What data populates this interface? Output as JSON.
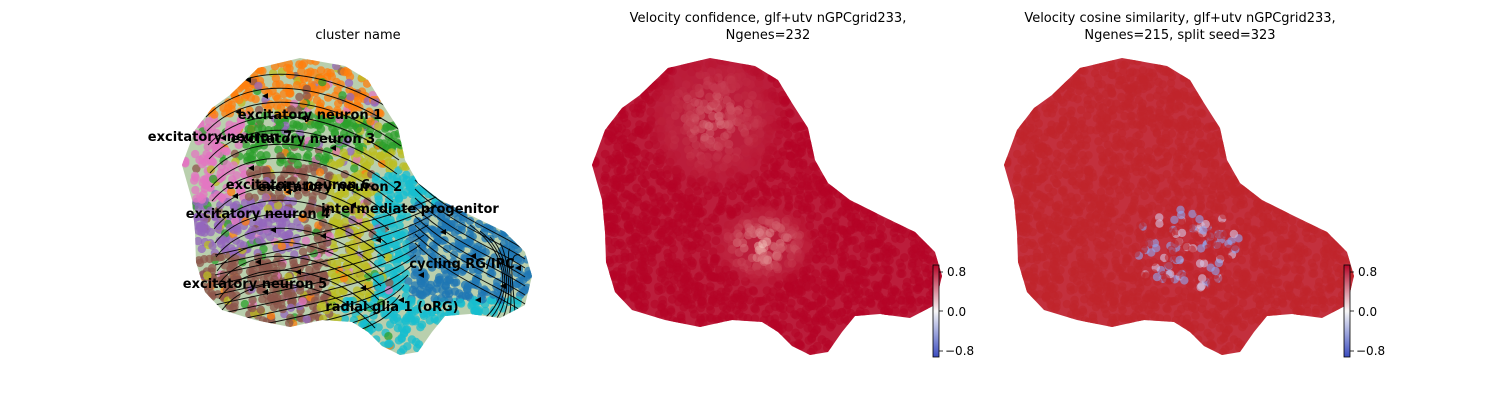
{
  "chart_data": [
    {
      "type": "scatter",
      "title": "cluster name",
      "xlabel": "",
      "ylabel": "",
      "overlay": "velocity-streamlines",
      "legend": "on-data",
      "series": [
        {
          "name": "excitatory neuron 1",
          "color": "#ff7f0e",
          "centroid": [
            0.62,
            0.8
          ]
        },
        {
          "name": "excitatory neuron 3",
          "color": "#2ca02c",
          "centroid": [
            0.55,
            0.73
          ]
        },
        {
          "name": "excitatory neuron 7",
          "color": "#e377c2",
          "centroid": [
            0.28,
            0.74
          ]
        },
        {
          "name": "excitatory neuron 6",
          "color": "#8c564b",
          "centroid": [
            0.51,
            0.6
          ]
        },
        {
          "name": "excitatory neuron 2",
          "color": "#bcbd22",
          "centroid": [
            0.59,
            0.59
          ]
        },
        {
          "name": "intermediate progenitor",
          "color": "#17becf",
          "centroid": [
            0.76,
            0.52
          ]
        },
        {
          "name": "excitatory neuron 4",
          "color": "#9467bd",
          "centroid": [
            0.37,
            0.51
          ]
        },
        {
          "name": "cycling RG/IPC",
          "color": "#1f77b4",
          "centroid": [
            0.9,
            0.33
          ]
        },
        {
          "name": "excitatory neuron 5",
          "color": "#8c564b",
          "centroid": [
            0.38,
            0.23
          ]
        },
        {
          "name": "radial glia 1 (oRG)",
          "color": "#17becf",
          "centroid": [
            0.79,
            0.17
          ]
        }
      ]
    },
    {
      "type": "scatter",
      "title": "Velocity confidence, glf+utv nGPCgrid233,",
      "subtitle": "Ngenes=232",
      "colorbar": {
        "ticks": [
          "0.8",
          "0.0",
          "−0.8"
        ],
        "range": [
          -1,
          1
        ]
      }
    },
    {
      "type": "scatter",
      "title": "Velocity cosine similarity, glf+utv nGPCgrid233,",
      "subtitle": "Ngenes=215, split seed=323",
      "colorbar": {
        "ticks": [
          "0.8",
          "0.0",
          "−0.8"
        ],
        "range": [
          -1,
          1
        ]
      }
    }
  ]
}
